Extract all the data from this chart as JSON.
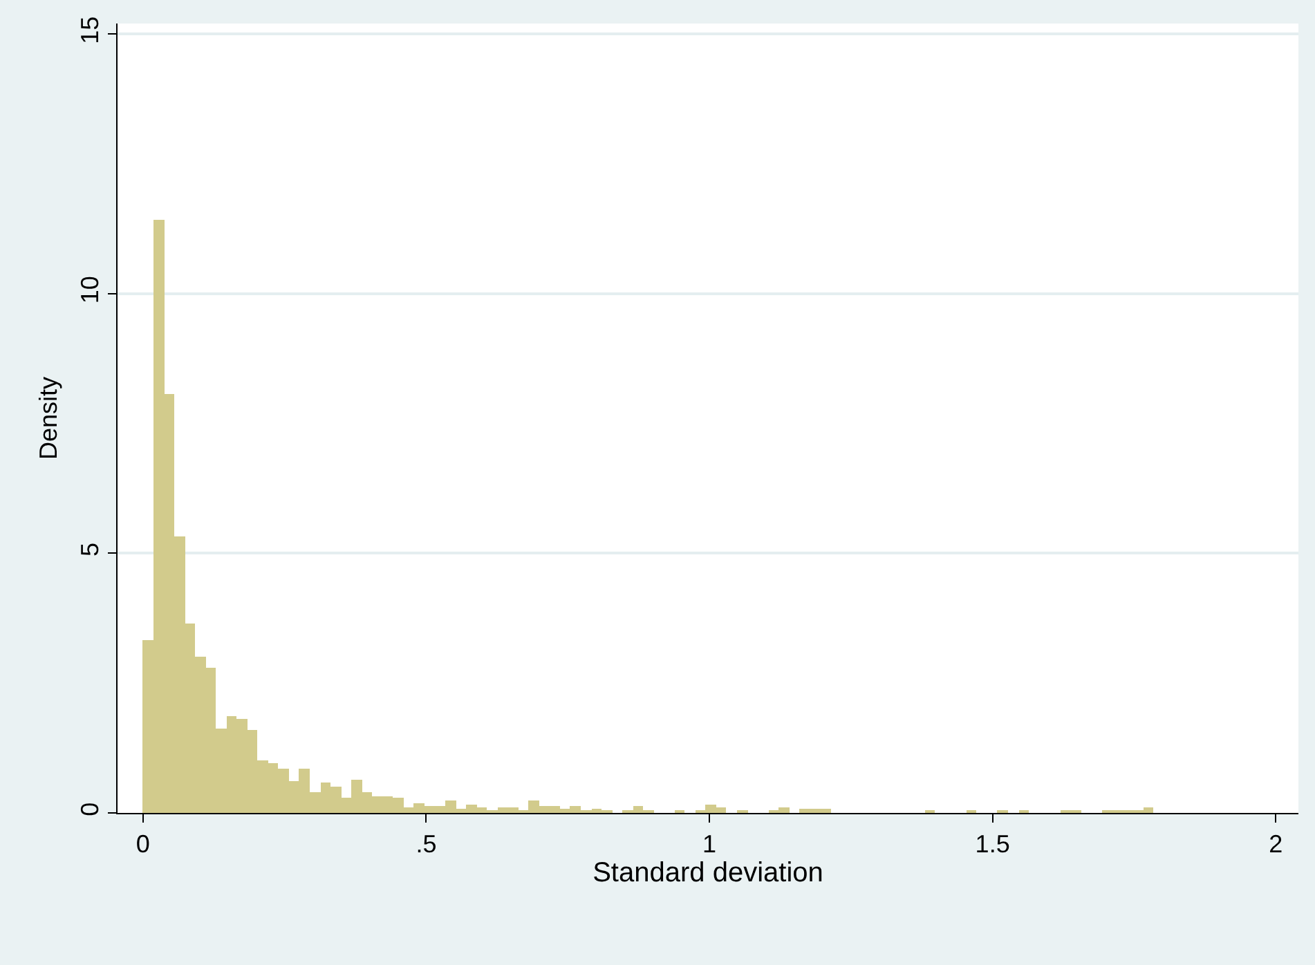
{
  "chart_data": {
    "type": "histogram",
    "xlabel": "Standard deviation",
    "ylabel": "Density",
    "color": "#d2cb8c",
    "bins": [
      0,
      0.0184,
      0.0368,
      0.0552,
      0.0736,
      0.092,
      0.1104,
      0.1288,
      0.1472,
      0.1656,
      0.184,
      0.2024,
      0.2208,
      0.2392,
      0.2576,
      0.276,
      0.2944,
      0.3128,
      0.3312,
      0.3496,
      0.368,
      0.3864,
      0.4048,
      0.4232,
      0.4416,
      0.46,
      0.4784,
      0.4968,
      0.5152,
      0.5336,
      0.552,
      0.5704,
      0.5888,
      0.6072,
      0.6256,
      0.644,
      0.6624,
      0.6808,
      0.6992,
      0.7176,
      0.736,
      0.7544,
      0.7728,
      0.7912,
      0.8096,
      0.828,
      0.8464,
      0.8648,
      0.8832,
      0.9016,
      0.92,
      0.9384,
      0.9568,
      0.9752,
      0.9936,
      1.012,
      1.0304,
      1.0488,
      1.0672,
      1.0856,
      1.104,
      1.1224,
      1.1408,
      1.1592,
      1.1776,
      1.196,
      1.2144,
      1.2328,
      1.2512,
      1.2696,
      1.288,
      1.3064,
      1.3248,
      1.3432,
      1.3616,
      1.38,
      1.3984,
      1.4168,
      1.4352,
      1.4536,
      1.472,
      1.4904,
      1.5088,
      1.5272,
      1.5456,
      1.564,
      1.5824,
      1.6008,
      1.6192,
      1.6376,
      1.656,
      1.6744,
      1.6928,
      1.7112,
      1.7296,
      1.748,
      1.7664,
      1.7848
    ],
    "values": [
      3.32,
      11.43,
      8.06,
      5.32,
      3.66,
      3.0,
      2.79,
      1.62,
      1.86,
      1.8,
      1.6,
      1.01,
      0.97,
      0.85,
      0.61,
      0.85,
      0.4,
      0.59,
      0.5,
      0.28,
      0.63,
      0.39,
      0.33,
      0.33,
      0.28,
      0.1,
      0.19,
      0.14,
      0.14,
      0.25,
      0.08,
      0.17,
      0.1,
      0.05,
      0.1,
      0.1,
      0.03,
      0.24,
      0.13,
      0.13,
      0.08,
      0.12,
      0.05,
      0.08,
      0.03,
      0,
      0.05,
      0.12,
      0.03,
      0,
      0,
      0.04,
      0,
      0.05,
      0.15,
      0.1,
      0,
      0.06,
      0,
      0,
      0.06,
      0.11,
      0,
      0.07,
      0.07,
      0.07,
      0,
      0,
      0,
      0,
      0,
      0,
      0,
      0,
      0,
      0.06,
      0,
      0,
      0,
      0.06,
      0,
      0,
      0.06,
      0,
      0.06,
      0,
      0,
      0,
      0.06,
      0.06,
      0,
      0,
      0.06,
      0.06,
      0.06,
      0.06,
      0.11
    ],
    "xlim": [
      -0.045,
      2.04
    ],
    "xticks": [
      0,
      {
        "value": 0.5,
        "label": ".5"
      },
      1,
      1.5,
      2
    ],
    "ylim": [
      0,
      15.2
    ],
    "yticks": [
      0,
      5,
      10,
      15
    ],
    "grid": "y"
  }
}
